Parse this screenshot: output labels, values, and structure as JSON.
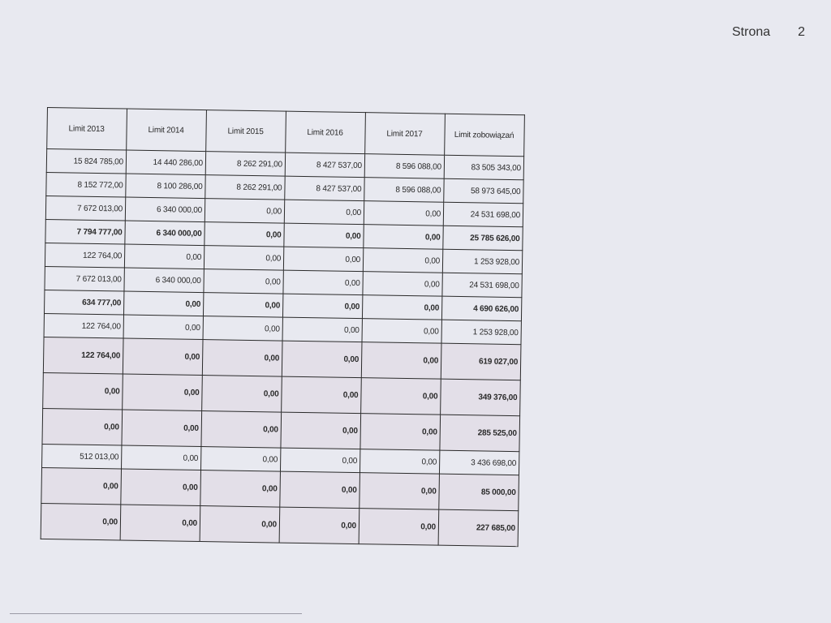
{
  "page": {
    "label": "Strona",
    "number": "2"
  },
  "table": {
    "headers": [
      "Limit 2013",
      "Limit 2014",
      "Limit 2015",
      "Limit 2016",
      "Limit 2017",
      "Limit zobowiązań"
    ],
    "rows": [
      {
        "bold": false,
        "tall": false,
        "cells": [
          "15 824 785,00",
          "14 440 286,00",
          "8 262 291,00",
          "8 427 537,00",
          "8 596 088,00",
          "83 505 343,00"
        ]
      },
      {
        "bold": false,
        "tall": false,
        "cells": [
          "8 152 772,00",
          "8 100 286,00",
          "8 262 291,00",
          "8 427 537,00",
          "8 596 088,00",
          "58 973 645,00"
        ]
      },
      {
        "bold": false,
        "tall": false,
        "cells": [
          "7 672 013,00",
          "6 340 000,00",
          "0,00",
          "0,00",
          "0,00",
          "24 531 698,00"
        ]
      },
      {
        "bold": true,
        "tall": false,
        "cells": [
          "7 794 777,00",
          "6 340 000,00",
          "0,00",
          "0,00",
          "0,00",
          "25 785 626,00"
        ]
      },
      {
        "bold": false,
        "tall": false,
        "cells": [
          "122 764,00",
          "0,00",
          "0,00",
          "0,00",
          "0,00",
          "1 253 928,00"
        ]
      },
      {
        "bold": false,
        "tall": false,
        "cells": [
          "7 672 013,00",
          "6 340 000,00",
          "0,00",
          "0,00",
          "0,00",
          "24 531 698,00"
        ]
      },
      {
        "bold": true,
        "tall": false,
        "cells": [
          "634 777,00",
          "0,00",
          "0,00",
          "0,00",
          "0,00",
          "4 690 626,00"
        ]
      },
      {
        "bold": false,
        "tall": false,
        "cells": [
          "122 764,00",
          "0,00",
          "0,00",
          "0,00",
          "0,00",
          "1 253 928,00"
        ]
      },
      {
        "bold": true,
        "tall": true,
        "cells": [
          "122 764,00",
          "0,00",
          "0,00",
          "0,00",
          "0,00",
          "619 027,00"
        ]
      },
      {
        "bold": true,
        "tall": true,
        "cells": [
          "0,00",
          "0,00",
          "0,00",
          "0,00",
          "0,00",
          "349 376,00"
        ]
      },
      {
        "bold": true,
        "tall": true,
        "cells": [
          "0,00",
          "0,00",
          "0,00",
          "0,00",
          "0,00",
          "285 525,00"
        ]
      },
      {
        "bold": false,
        "tall": false,
        "cells": [
          "512 013,00",
          "0,00",
          "0,00",
          "0,00",
          "0,00",
          "3 436 698,00"
        ]
      },
      {
        "bold": true,
        "tall": true,
        "cells": [
          "0,00",
          "0,00",
          "0,00",
          "0,00",
          "0,00",
          "85 000,00"
        ]
      },
      {
        "bold": true,
        "tall": true,
        "cells": [
          "0,00",
          "0,00",
          "0,00",
          "0,00",
          "0,00",
          "227 685,00"
        ]
      }
    ]
  }
}
